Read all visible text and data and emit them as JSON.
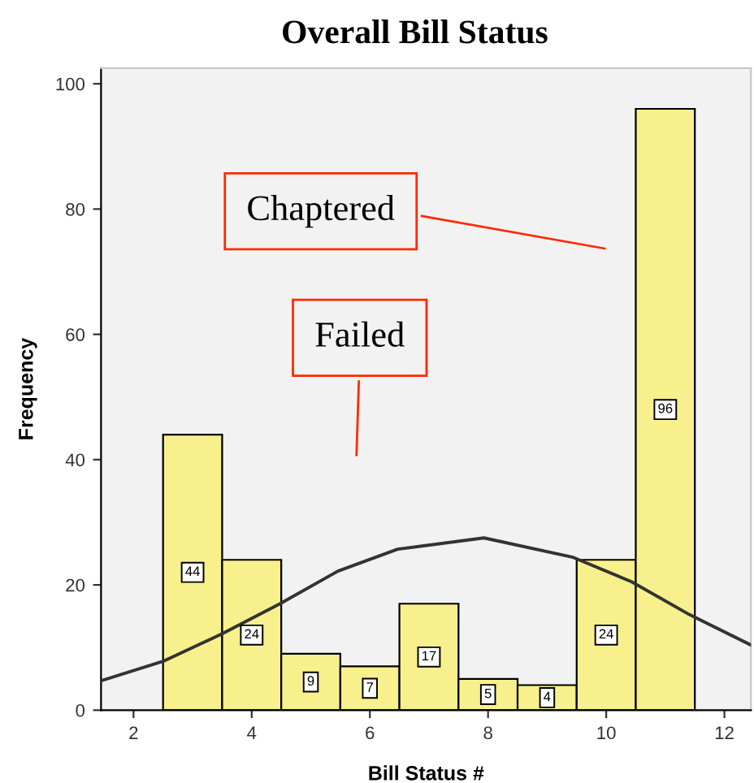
{
  "chart_data": {
    "type": "histogram",
    "title": "Overall Bill Status",
    "xlabel": "Bill Status #",
    "ylabel": "Frequency",
    "bins": [
      2.5,
      3.5,
      4.5,
      5.5,
      6.5,
      7.5,
      8.5,
      9.5,
      10.5,
      11.5
    ],
    "values": [
      44,
      24,
      9,
      7,
      17,
      5,
      4,
      24,
      96
    ],
    "value_labels": [
      "44",
      "24",
      "9",
      "7",
      "17",
      "5",
      "4",
      "24",
      "96"
    ],
    "color": "#f7f08c",
    "series": [
      {
        "type": "line",
        "color": "#333333",
        "x": [
          1.45,
          2.5,
          3.5,
          4.48,
          5.46,
          6.47,
          7.93,
          9.44,
          10.43,
          11.4,
          12.45
        ],
        "values": [
          4.7,
          7.8,
          12.2,
          17.0,
          22.2,
          25.7,
          27.5,
          24.4,
          20.5,
          15.3,
          10.4
        ]
      }
    ],
    "annotations": [
      "Chaptered",
      "Failed"
    ],
    "xlim": [
      1.45,
      12.45
    ],
    "xticks": [
      2,
      4,
      6,
      8,
      10,
      12
    ],
    "ylim": [
      0,
      102.5
    ],
    "yticks": [
      0,
      20,
      40,
      60,
      80,
      100
    ],
    "grid": false
  }
}
